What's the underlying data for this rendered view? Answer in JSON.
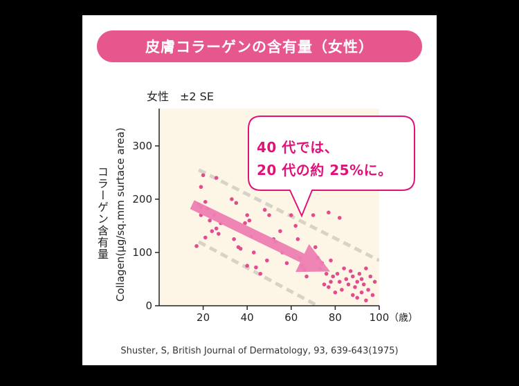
{
  "title": "皮膚コラーゲンの含有量（女性）",
  "subtitle": "女性　±2 SE",
  "y_label_jp": "コラーゲン含有量",
  "y_label_en": "Collagen(μg/sq.mm surtace area)",
  "x_unit": "（歳）",
  "callout": {
    "line1": "40 代では、",
    "line2": "20 代の約 25%に。"
  },
  "source": "Shuster, S, British Journal of Dermatology, 93, 639-643(1975)",
  "colors": {
    "title_bg": "#e6578d",
    "plot_bg": "#fdf6e6",
    "point": "#e24c8e",
    "band": "#d6d3c7",
    "arrow": "#ee7fb3",
    "callout_text": "#e0127a"
  },
  "chart_data": {
    "type": "scatter",
    "x_ticks": [
      20,
      40,
      60,
      80,
      100
    ],
    "y_ticks": [
      0,
      100,
      200,
      300
    ],
    "xlim": [
      0,
      100
    ],
    "ylim": [
      0,
      370
    ],
    "points": [
      [
        17,
        112
      ],
      [
        18,
        190
      ],
      [
        19,
        185
      ],
      [
        19,
        223
      ],
      [
        19,
        170
      ],
      [
        20,
        245
      ],
      [
        21,
        195
      ],
      [
        21,
        128
      ],
      [
        22,
        182
      ],
      [
        23,
        160
      ],
      [
        24,
        140
      ],
      [
        25,
        170
      ],
      [
        26,
        240
      ],
      [
        26,
        145
      ],
      [
        27,
        135
      ],
      [
        28,
        155
      ],
      [
        33,
        200
      ],
      [
        34,
        125
      ],
      [
        35,
        193
      ],
      [
        36,
        110
      ],
      [
        37,
        107
      ],
      [
        39,
        155
      ],
      [
        40,
        75
      ],
      [
        40,
        170
      ],
      [
        41,
        160
      ],
      [
        42,
        130
      ],
      [
        43,
        100
      ],
      [
        44,
        72
      ],
      [
        46,
        60
      ],
      [
        48,
        180
      ],
      [
        49,
        85
      ],
      [
        50,
        170
      ],
      [
        52,
        125
      ],
      [
        53,
        120
      ],
      [
        55,
        140
      ],
      [
        56,
        100
      ],
      [
        58,
        80
      ],
      [
        60,
        170
      ],
      [
        62,
        150
      ],
      [
        63,
        125
      ],
      [
        64,
        90
      ],
      [
        65,
        75
      ],
      [
        66,
        68
      ],
      [
        67,
        55
      ],
      [
        70,
        170
      ],
      [
        71,
        110
      ],
      [
        72,
        90
      ],
      [
        73,
        70
      ],
      [
        74,
        80
      ],
      [
        75,
        40
      ],
      [
        76,
        60
      ],
      [
        77,
        175
      ],
      [
        77,
        35
      ],
      [
        78,
        85
      ],
      [
        78,
        45
      ],
      [
        79,
        55
      ],
      [
        80,
        25
      ],
      [
        81,
        60
      ],
      [
        82,
        45
      ],
      [
        82,
        165
      ],
      [
        83,
        30
      ],
      [
        84,
        70
      ],
      [
        85,
        50
      ],
      [
        86,
        40
      ],
      [
        87,
        65
      ],
      [
        88,
        20
      ],
      [
        88,
        55
      ],
      [
        89,
        35
      ],
      [
        90,
        45
      ],
      [
        90,
        15
      ],
      [
        91,
        60
      ],
      [
        92,
        25
      ],
      [
        92,
        50
      ],
      [
        93,
        40
      ],
      [
        94,
        70
      ],
      [
        94,
        10
      ],
      [
        95,
        30
      ],
      [
        96,
        55
      ],
      [
        97,
        20
      ],
      [
        98,
        45
      ]
    ],
    "band": {
      "upper": [
        [
          18,
          255
        ],
        [
          100,
          85
        ]
      ],
      "lower": [
        [
          18,
          120
        ],
        [
          72,
          0
        ]
      ]
    },
    "trend_arrow": {
      "from": [
        15,
        190
      ],
      "to": [
        80,
        50
      ]
    }
  }
}
